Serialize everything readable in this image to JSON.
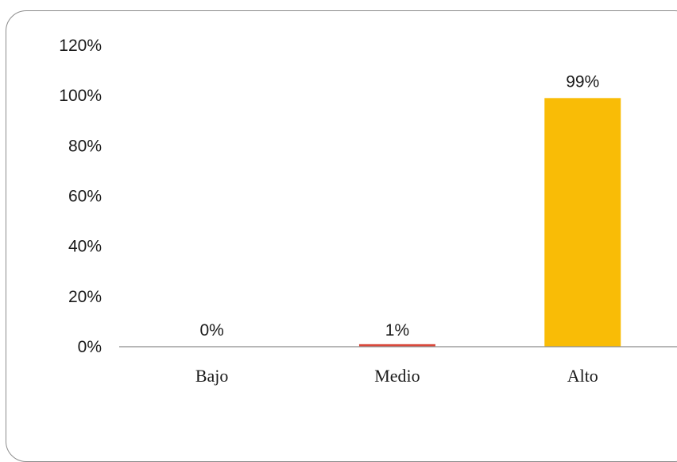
{
  "chart_data": {
    "type": "bar",
    "categories": [
      "Bajo",
      "Medio",
      "Alto"
    ],
    "values": [
      0,
      1,
      99
    ],
    "data_labels": [
      "0%",
      "1%",
      "99%"
    ],
    "bar_colors": [
      "#c0392b",
      "#d9483b",
      "#f9bc06"
    ],
    "yticks": [
      0,
      20,
      40,
      60,
      80,
      100,
      120
    ],
    "ytick_labels": [
      "0%",
      "20%",
      "40%",
      "60%",
      "80%",
      "100%",
      "120%"
    ],
    "ylim": [
      0,
      120
    ],
    "title": "",
    "xlabel": "",
    "ylabel": "",
    "grid": false,
    "legend": "none"
  }
}
